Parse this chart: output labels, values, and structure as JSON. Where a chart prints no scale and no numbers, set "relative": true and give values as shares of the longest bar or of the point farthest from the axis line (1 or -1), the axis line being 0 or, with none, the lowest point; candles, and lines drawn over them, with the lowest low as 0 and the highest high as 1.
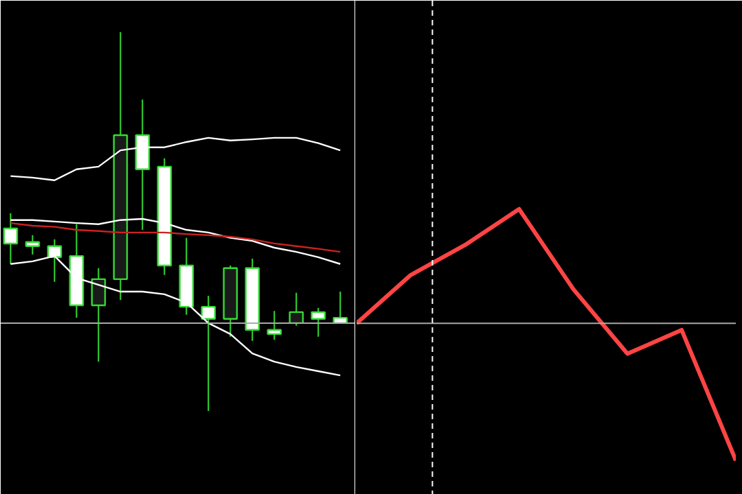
{
  "chart_data": [
    {
      "type": "candlestick",
      "relative": true,
      "tick_labels": false,
      "grid": false,
      "categories": [
        null,
        null,
        null,
        null,
        null,
        null,
        null,
        null,
        null,
        null,
        null,
        null,
        null,
        null,
        null,
        null
      ],
      "color": "#33dd33",
      "ohlc": [
        [
          0.482,
          0.522,
          0.388,
          0.442
        ],
        [
          0.446,
          0.464,
          0.413,
          0.435
        ],
        [
          0.435,
          0.453,
          0.341,
          0.406
        ],
        [
          0.409,
          0.493,
          0.246,
          0.279
        ],
        [
          0.279,
          0.377,
          0.13,
          0.348
        ],
        [
          0.348,
          1,
          0.293,
          0.728
        ],
        [
          0.728,
          0.822,
          0.478,
          0.638
        ],
        [
          0.645,
          0.667,
          0.359,
          0.384
        ],
        [
          0.384,
          0.457,
          0.254,
          0.275
        ],
        [
          0.275,
          0.304,
          0,
          0.243
        ],
        [
          0.243,
          0.384,
          0.196,
          0.377
        ],
        [
          0.377,
          0.402,
          0.185,
          0.214
        ],
        [
          0.214,
          0.264,
          0.188,
          0.203
        ],
        [
          0.232,
          0.312,
          0.225,
          0.261
        ],
        [
          0.261,
          0.272,
          0.196,
          0.243
        ],
        [
          0.246,
          0.315,
          0.232,
          0.232
        ]
      ],
      "series": [
        {
          "type": "line",
          "color": "#ffffff",
          "values": [
            0.62,
            0.616,
            0.609,
            0.638,
            0.645,
            0.688,
            0.696,
            0.696,
            0.71,
            0.721,
            0.714,
            0.717,
            0.721,
            0.721,
            0.707,
            0.688
          ]
        },
        {
          "type": "line",
          "color": "#ffffff",
          "values": [
            0.504,
            0.504,
            0.5,
            0.496,
            0.493,
            0.504,
            0.507,
            0.496,
            0.478,
            0.471,
            0.457,
            0.449,
            0.431,
            0.42,
            0.406,
            0.388
          ]
        },
        {
          "type": "line",
          "color": "#cc2222",
          "values": [
            0.496,
            0.489,
            0.486,
            0.478,
            0.475,
            0.471,
            0.471,
            0.471,
            0.467,
            0.464,
            0.46,
            0.453,
            0.442,
            0.435,
            0.428,
            0.42
          ]
        },
        {
          "type": "line",
          "color": "#ffffff",
          "values": [
            0.388,
            0.395,
            0.409,
            0.351,
            0.333,
            0.315,
            0.315,
            0.308,
            0.286,
            0.232,
            0.203,
            0.152,
            0.13,
            0.116,
            0.105,
            0.094
          ]
        }
      ],
      "ref_lines": [
        {
          "axis": "y",
          "value": 0.232,
          "color": "#aaaaaa",
          "line_style": "solid"
        }
      ]
    },
    {
      "type": "line",
      "relative": true,
      "tick_labels": false,
      "grid": false,
      "categories": [
        null,
        null,
        null,
        null,
        null,
        null,
        null,
        null
      ],
      "series": [
        {
          "color": "#ff4444",
          "values": [
            0,
            0.352,
            0.57,
            0.832,
            0.249,
            -0.222,
            -0.049,
            -1
          ]
        }
      ]
    }
  ]
}
